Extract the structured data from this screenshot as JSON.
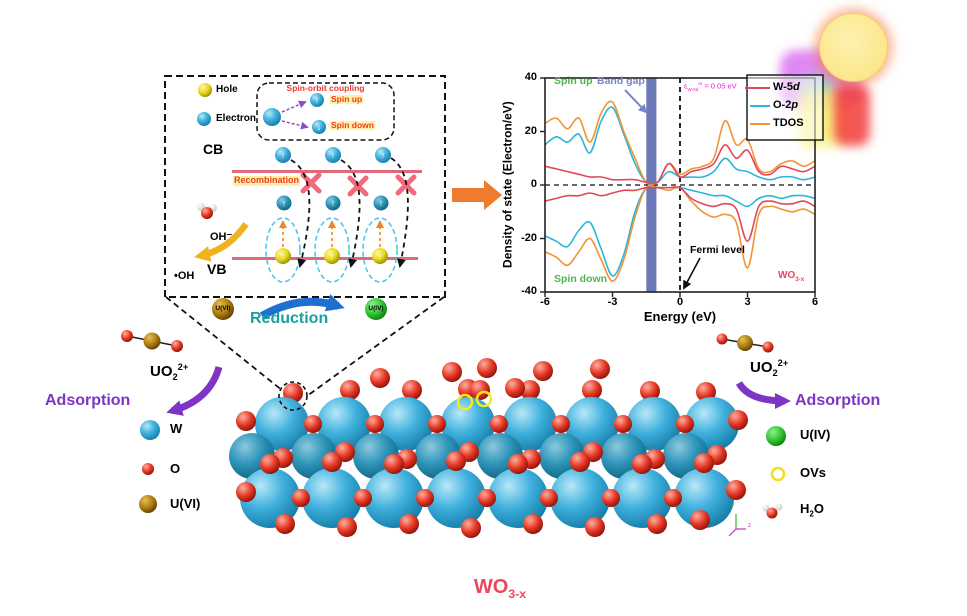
{
  "palette": {
    "accent_red_text": "#f0382a",
    "teal": "#16a3a0",
    "purple": "#7e35c5",
    "green_text": "#4db84d",
    "slate": "#7a86c8",
    "magenta": "#ea1fd0",
    "crimson": "#e8485a",
    "orange_arrow": "#ee7c2c",
    "band_color": "#6b79b8",
    "spin_up_glyph": "↑",
    "spin_down_glyph": "↓"
  },
  "schematic": {
    "hole_label": "Hole",
    "electron_label": "Electron",
    "soc_title": "Spin-orbit coupling",
    "spin_up": "Spin up",
    "spin_down": "Spin down",
    "cb": "CB",
    "recombination": "Recombination",
    "oh_minus": "OH⁻",
    "oh_radical": "•OH",
    "vb": "VB",
    "uvi": "U(VI)",
    "uiv": "U(IV)",
    "reduction": "Reduction"
  },
  "adsorption_left": {
    "uo2": {
      "base": "UO",
      "sub": "2",
      "sup": "2+"
    },
    "label": "Adsorption"
  },
  "adsorption_right": {
    "uo2": {
      "base": "UO",
      "sub": "2",
      "sup": "2+"
    },
    "label": "Adsorption"
  },
  "legend_left": {
    "w": "W",
    "o": "O",
    "uvi": "U(VI)"
  },
  "legend_right": {
    "uiv": "U(IV)",
    "ovs": "OVs",
    "h2o": {
      "base1": "H",
      "sub": "2",
      "base2": "O"
    }
  },
  "axes_icon": {
    "y": "y",
    "z": "z"
  },
  "footer": {
    "base": "WO",
    "sub": "3-x"
  },
  "chart_data": {
    "type": "line",
    "title": "",
    "xlabel": "Energy (eV)",
    "ylabel": "Density of state (Electron/eV)",
    "xlim": [
      -6,
      6
    ],
    "ylim": [
      -40,
      40
    ],
    "xticks": [
      -6,
      -3,
      0,
      3,
      6
    ],
    "yticks": [
      40,
      20,
      0,
      -20,
      -40
    ],
    "grid": false,
    "legend_position": "upper right",
    "x": [
      -6,
      -5.5,
      -5,
      -4.5,
      -4,
      -3.5,
      -3,
      -2.5,
      -2,
      -1.5,
      -1,
      -0.5,
      0,
      0.5,
      1,
      1.5,
      2,
      2.5,
      3,
      3.5,
      4,
      4.5,
      5,
      5.5,
      6
    ],
    "series": [
      {
        "name": "W-5d",
        "pre": "W-5",
        "it": "d",
        "color": "#e0485c",
        "spin_up": [
          7,
          6,
          5,
          4,
          3,
          3,
          2,
          2,
          2,
          1,
          1,
          8,
          3,
          5,
          6,
          8,
          15,
          10,
          13,
          5,
          4,
          7,
          6,
          5,
          7
        ],
        "spin_down": [
          -6,
          -5,
          -4,
          -4,
          -3,
          -4,
          -3,
          -2,
          -2,
          -1,
          -1,
          -1,
          -1,
          -5,
          -7,
          -8,
          -7,
          -9,
          -21,
          -8,
          -6,
          -7,
          -7,
          -6,
          -8
        ]
      },
      {
        "name": "O-2p",
        "pre": "O-2",
        "it": "p",
        "color": "#2ab6d9",
        "spin_up": [
          15,
          18,
          16,
          19,
          12,
          24,
          29,
          19,
          8,
          1,
          1,
          5,
          3,
          3,
          3,
          5,
          10,
          6,
          5,
          3,
          2,
          3,
          3,
          2,
          3
        ],
        "spin_down": [
          -19,
          -21,
          -23,
          -17,
          -14,
          -24,
          -34,
          -26,
          -10,
          -1,
          -1,
          -1,
          -1,
          -2,
          -3,
          -4,
          -4,
          -6,
          -8,
          -5,
          -4,
          -5,
          -4,
          -4,
          -5
        ]
      },
      {
        "name": "TDOS",
        "pre": "TDOS",
        "it": "",
        "color": "#f29435",
        "spin_up": [
          23,
          25,
          21,
          25,
          16,
          27,
          31,
          20,
          10,
          1,
          1,
          8,
          4,
          6,
          7,
          10,
          24,
          15,
          17,
          6,
          5,
          8,
          9,
          7,
          9
        ],
        "spin_down": [
          -25,
          -27,
          -30,
          -25,
          -20,
          -28,
          -36,
          -28,
          -12,
          -1,
          -1,
          -2,
          -1,
          -6,
          -10,
          -12,
          -11,
          -14,
          -31,
          -11,
          -8,
          -9,
          -10,
          -9,
          -11
        ]
      }
    ],
    "band_gap": {
      "label": "Band gap",
      "x_range": [
        -1.5,
        -1.05
      ],
      "color": "#6b79b8"
    },
    "annotations": {
      "spin_up": "Spin up",
      "spin_down": "Spin down",
      "fermi": "Fermi level",
      "splitting": {
        "sym": "ε",
        "sub": "W-5d",
        "sup": "m",
        "rest": " = 0.05 eV"
      },
      "material": {
        "base": "WO",
        "sub": "3-x"
      }
    }
  }
}
